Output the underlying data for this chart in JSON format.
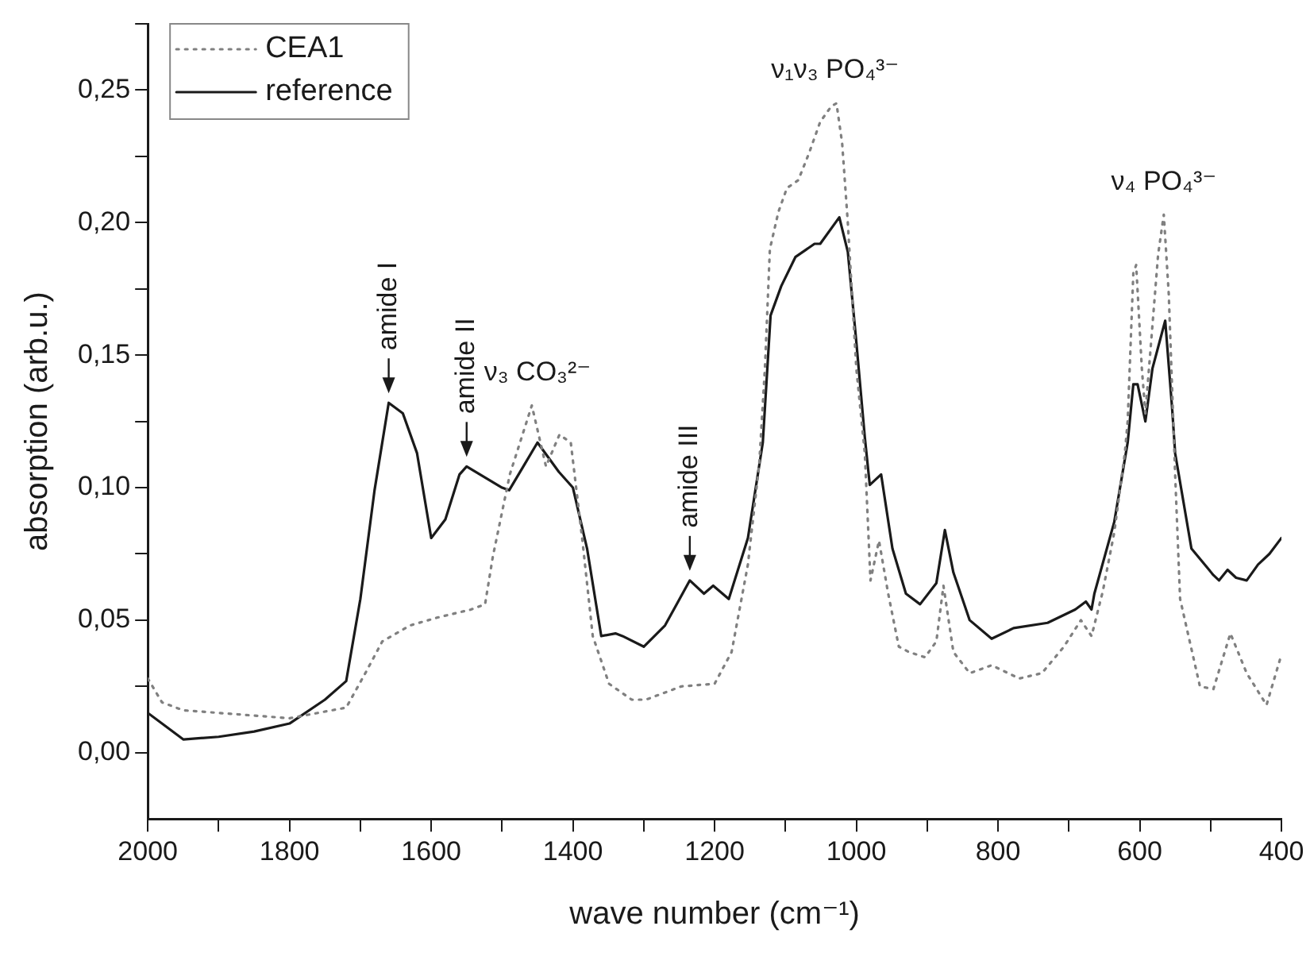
{
  "chart_data": {
    "type": "line",
    "xlabel": "wave number (cm⁻¹)",
    "ylabel": "absorption (arb.u.)",
    "xlim": [
      2000,
      400
    ],
    "ylim": [
      -0.025,
      0.275
    ],
    "xticks": [
      2000,
      {
        "value": 1900,
        "label": null
      },
      1800,
      {
        "value": 1700,
        "label": null
      },
      1600,
      {
        "value": 1500,
        "label": null
      },
      1400,
      {
        "value": 1300,
        "label": null
      },
      1200,
      {
        "value": 1100,
        "label": null
      },
      1000,
      {
        "value": 900,
        "label": null
      },
      800,
      {
        "value": 700,
        "label": null
      },
      600,
      {
        "value": 500,
        "label": null
      },
      400
    ],
    "yticks": [
      {
        "value": 0,
        "label": "0,00"
      },
      {
        "value": 0.025,
        "label": null
      },
      {
        "value": 0.05,
        "label": "0,05"
      },
      {
        "value": 0.075,
        "label": null
      },
      {
        "value": 0.1,
        "label": "0,10"
      },
      {
        "value": 0.125,
        "label": null
      },
      {
        "value": 0.15,
        "label": "0,15"
      },
      {
        "value": 0.175,
        "label": null
      },
      {
        "value": 0.2,
        "label": "0,20"
      },
      {
        "value": 0.225,
        "label": null
      },
      {
        "value": 0.25,
        "label": "0,25"
      },
      {
        "value": 0.275,
        "label": null
      }
    ],
    "grid": false,
    "legend": "top left",
    "marker": "none",
    "series": [
      {
        "name": "CEA1",
        "color": "#808080",
        "line_style": "dotted",
        "x": [
          2000,
          1980,
          1950,
          1900,
          1850,
          1800,
          1760,
          1720,
          1693,
          1669,
          1630,
          1591,
          1544,
          1524,
          1513,
          1489,
          1458,
          1438,
          1419,
          1403,
          1387,
          1372,
          1349,
          1317,
          1297,
          1247,
          1200,
          1176,
          1153,
          1137,
          1129,
          1122,
          1110,
          1098,
          1082,
          1067,
          1051,
          1035,
          1028,
          1020,
          1012,
          1000,
          988,
          980,
          968,
          955,
          940,
          926,
          903,
          887,
          877,
          863,
          840,
          809,
          770,
          738,
          707,
          683,
          668,
          652,
          636,
          621,
          617,
          609,
          605,
          597,
          592,
          574,
          566,
          559,
          550,
          543,
          515,
          496,
          472,
          449,
          421,
          400
        ],
        "values": [
          0.028,
          0.019,
          0.016,
          0.015,
          0.014,
          0.013,
          0.015,
          0.017,
          0.03,
          0.042,
          0.048,
          0.051,
          0.054,
          0.056,
          0.074,
          0.105,
          0.131,
          0.108,
          0.12,
          0.117,
          0.081,
          0.044,
          0.026,
          0.02,
          0.02,
          0.025,
          0.026,
          0.038,
          0.071,
          0.109,
          0.145,
          0.19,
          0.204,
          0.213,
          0.216,
          0.226,
          0.238,
          0.244,
          0.245,
          0.23,
          0.2,
          0.145,
          0.113,
          0.065,
          0.08,
          0.06,
          0.04,
          0.038,
          0.036,
          0.042,
          0.063,
          0.038,
          0.03,
          0.033,
          0.028,
          0.03,
          0.04,
          0.05,
          0.044,
          0.061,
          0.083,
          0.113,
          0.125,
          0.181,
          0.184,
          0.145,
          0.128,
          0.188,
          0.203,
          0.173,
          0.105,
          0.058,
          0.025,
          0.024,
          0.045,
          0.03,
          0.018,
          0.037
        ]
      },
      {
        "name": "reference",
        "color": "#1a1a1a",
        "line_style": "solid",
        "x": [
          2000,
          1980,
          1950,
          1900,
          1850,
          1800,
          1750,
          1720,
          1700,
          1680,
          1660,
          1640,
          1620,
          1600,
          1580,
          1560,
          1550,
          1500,
          1490,
          1470,
          1450,
          1420,
          1400,
          1380,
          1360,
          1340,
          1330,
          1300,
          1270,
          1235,
          1215,
          1202,
          1180,
          1153,
          1132,
          1121,
          1106,
          1086,
          1059,
          1051,
          1024,
          1012,
          1000,
          988,
          981,
          965,
          949,
          930,
          910,
          887,
          875,
          863,
          840,
          809,
          778,
          730,
          691,
          676,
          668,
          664,
          636,
          617,
          609,
          603,
          592,
          582,
          564,
          554,
          550,
          527,
          496,
          488,
          476,
          464,
          449,
          433,
          417,
          400
        ],
        "values": [
          0.015,
          0.011,
          0.005,
          0.006,
          0.008,
          0.011,
          0.02,
          0.027,
          0.058,
          0.099,
          0.132,
          0.128,
          0.113,
          0.081,
          0.088,
          0.105,
          0.108,
          0.1,
          0.099,
          0.108,
          0.117,
          0.106,
          0.1,
          0.077,
          0.044,
          0.045,
          0.044,
          0.04,
          0.048,
          0.065,
          0.06,
          0.063,
          0.058,
          0.081,
          0.117,
          0.165,
          0.176,
          0.187,
          0.192,
          0.192,
          0.202,
          0.189,
          0.155,
          0.119,
          0.101,
          0.105,
          0.077,
          0.06,
          0.056,
          0.064,
          0.084,
          0.068,
          0.05,
          0.043,
          0.047,
          0.049,
          0.054,
          0.057,
          0.054,
          0.06,
          0.087,
          0.117,
          0.139,
          0.139,
          0.125,
          0.145,
          0.163,
          0.129,
          0.113,
          0.077,
          0.067,
          0.065,
          0.069,
          0.066,
          0.065,
          0.071,
          0.075,
          0.081
        ]
      }
    ],
    "annotations": [
      {
        "text": "amide I",
        "x": 1660,
        "y": 0.132
      },
      {
        "text": "amide II",
        "x": 1550,
        "y": 0.108
      },
      {
        "text": "amide III",
        "x": 1235,
        "y": 0.065
      },
      {
        "text": "ν₃ CO₃²⁻",
        "x": 1450,
        "y": 0.131
      },
      {
        "text": "ν₁ν₃ PO₄³⁻",
        "x": 1030,
        "y": 0.245
      },
      {
        "text": "ν₄ PO₄³⁻",
        "x": 566,
        "y": 0.203
      }
    ]
  }
}
